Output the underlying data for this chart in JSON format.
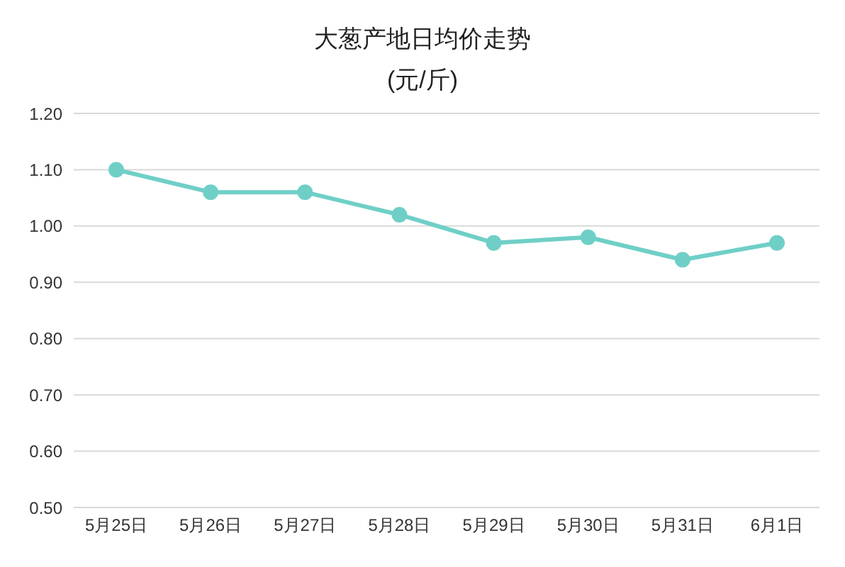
{
  "chart_data": {
    "type": "line",
    "title": "大葱产地日均价走势",
    "subtitle": "(元/斤)",
    "categories": [
      "5月25日",
      "5月26日",
      "5月27日",
      "5月28日",
      "5月29日",
      "5月30日",
      "5月31日",
      "6月1日"
    ],
    "series": [
      {
        "color": "#6fcfc7",
        "values": [
          1.1,
          1.06,
          1.06,
          1.02,
          0.97,
          0.98,
          0.94,
          0.97
        ]
      }
    ],
    "ylim": [
      0.5,
      1.2
    ],
    "yticks": [
      {
        "value": 0.5,
        "label": "0.50"
      },
      {
        "value": 0.6,
        "label": "0.60"
      },
      {
        "value": 0.7,
        "label": "0.70"
      },
      {
        "value": 0.8,
        "label": "0.80"
      },
      {
        "value": 0.9,
        "label": "0.90"
      },
      {
        "value": 1.0,
        "label": "1.00"
      },
      {
        "value": 1.1,
        "label": "1.10"
      },
      {
        "value": 1.2,
        "label": "1.20"
      }
    ],
    "grid": "y",
    "marker": "circle",
    "line_style": "solid",
    "legend": false
  }
}
